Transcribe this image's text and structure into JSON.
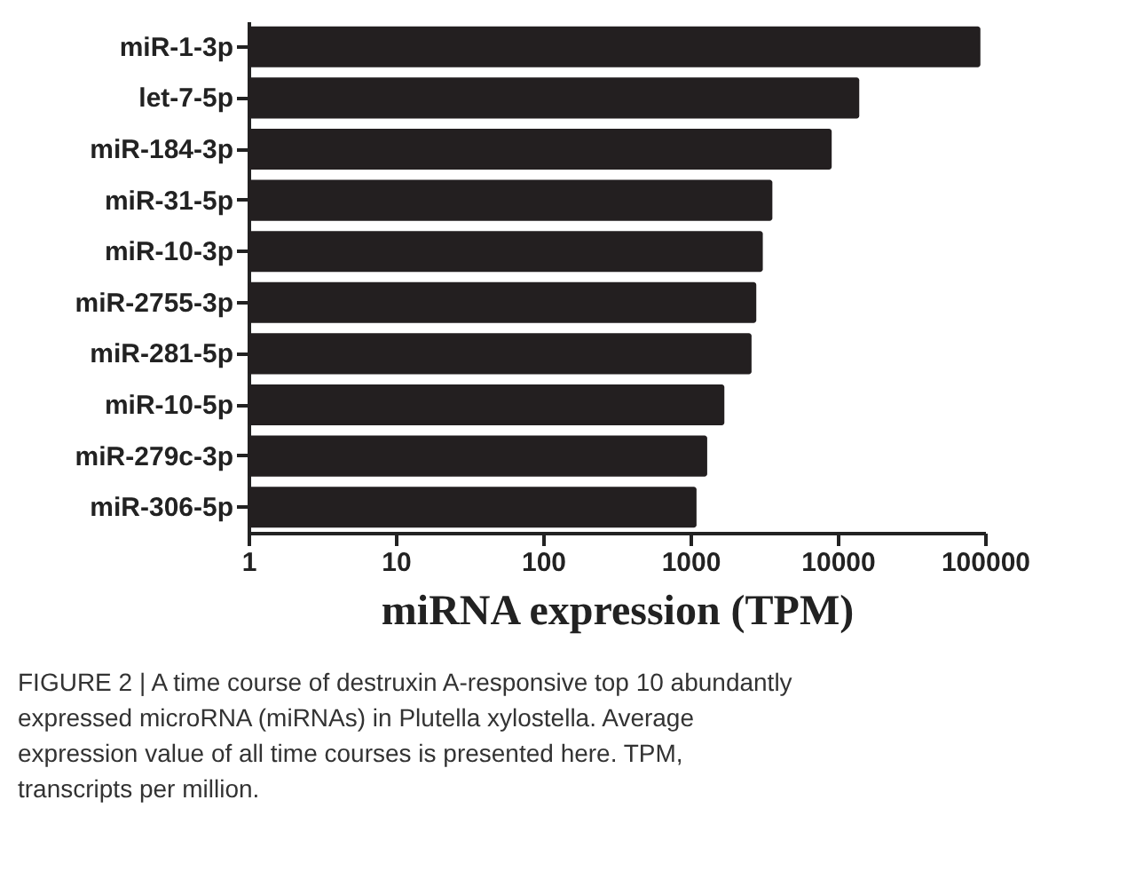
{
  "chart_data": {
    "type": "bar",
    "orientation": "horizontal",
    "log": "x",
    "xlabel": "miRNA expression (TPM)",
    "categories": [
      "miR-1-3p",
      "let-7-5p",
      "miR-184-3p",
      "miR-31-5p",
      "miR-10-3p",
      "miR-2755-3p",
      "miR-281-5p",
      "miR-10-5p",
      "miR-279c-3p",
      "miR-306-5p"
    ],
    "values": [
      93000,
      14000,
      9100,
      3600,
      3100,
      2800,
      2600,
      1700,
      1300,
      1100
    ],
    "color": "#231f20",
    "xlim": [
      1,
      100000
    ],
    "xticks": [
      1,
      10,
      100,
      1000,
      10000,
      100000
    ],
    "grid": false,
    "annotations": [
      "FIGURE 2 | A time course of destruxin A-responsive top 10 abundantly expressed microRNA (miRNAs) in Plutella xylostella. Average expression value of all time courses is presented here. TPM, transcripts per million."
    ]
  }
}
